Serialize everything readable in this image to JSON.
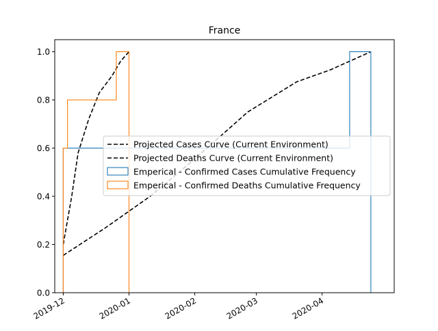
{
  "chart_data": {
    "type": "line",
    "title": "France",
    "xlabel": "",
    "ylabel": "",
    "x_axis": {
      "type": "date",
      "range": [
        "2019-11-27",
        "2020-05-05"
      ],
      "ticks": [
        "2019-12",
        "2020-01",
        "2020-02",
        "2020-03",
        "2020-04"
      ],
      "tick_dates": [
        "2019-12-01",
        "2020-01-01",
        "2020-02-01",
        "2020-03-01",
        "2020-04-01"
      ]
    },
    "y_axis": {
      "range": [
        0.0,
        1.05
      ],
      "ticks": [
        "0.0",
        "0.2",
        "0.4",
        "0.6",
        "0.8",
        "1.0"
      ],
      "tick_values": [
        0.0,
        0.2,
        0.4,
        0.6,
        0.8,
        1.0
      ]
    },
    "grid": false,
    "legend_position": "center-right",
    "series": [
      {
        "name": "Projected Cases Curve (Current Environment)",
        "kind": "line",
        "style": "dashed",
        "color": "#000000",
        "points": [
          [
            "2019-12-01",
            0.155
          ],
          [
            "2019-12-21",
            0.27
          ],
          [
            "2020-01-11",
            0.4
          ],
          [
            "2020-02-01",
            0.555
          ],
          [
            "2020-02-26",
            0.75
          ],
          [
            "2020-03-20",
            0.875
          ],
          [
            "2020-04-05",
            0.925
          ],
          [
            "2020-04-24",
            1.0
          ]
        ]
      },
      {
        "name": "Projected Deaths Curve (Current Environment)",
        "kind": "line",
        "style": "dashed",
        "color": "#000000",
        "points": [
          [
            "2019-12-01",
            0.2
          ],
          [
            "2019-12-05",
            0.4
          ],
          [
            "2019-12-08",
            0.58
          ],
          [
            "2019-12-13",
            0.72
          ],
          [
            "2019-12-18",
            0.83
          ],
          [
            "2019-12-24",
            0.9
          ],
          [
            "2019-12-28",
            0.96
          ],
          [
            "2020-01-01",
            1.0
          ]
        ]
      },
      {
        "name": "Emperical - Confirmed Cases Cumulative Frequency",
        "kind": "step",
        "color": "#1f77b4",
        "points": [
          [
            "2019-12-01",
            0.0
          ],
          [
            "2019-12-01",
            0.6
          ],
          [
            "2020-04-14",
            0.6
          ],
          [
            "2020-04-14",
            1.0
          ],
          [
            "2020-04-24",
            1.0
          ],
          [
            "2020-04-24",
            0.0
          ]
        ]
      },
      {
        "name": "Emperical - Confirmed Deaths Cumulative Frequency",
        "kind": "step",
        "color": "#ff7f0e",
        "points": [
          [
            "2019-12-01",
            0.0
          ],
          [
            "2019-12-01",
            0.6
          ],
          [
            "2019-12-03",
            0.6
          ],
          [
            "2019-12-03",
            0.8
          ],
          [
            "2019-12-26",
            0.8
          ],
          [
            "2019-12-26",
            1.0
          ],
          [
            "2020-01-01",
            1.0
          ],
          [
            "2020-01-01",
            0.0
          ]
        ]
      }
    ]
  }
}
